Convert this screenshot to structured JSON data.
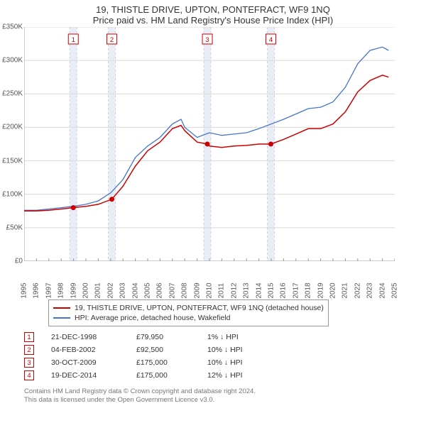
{
  "title_line1": "19, THISTLE DRIVE, UPTON, PONTEFRACT, WF9 1NQ",
  "title_line2": "Price paid vs. HM Land Registry's House Price Index (HPI)",
  "chart": {
    "type": "line",
    "background_color": "#ffffff",
    "grid_color": "#d9d9d9",
    "marker_band_color": "#e9edf7",
    "marker_dash_color": "#d0d0d0",
    "marker_badge_border": "#cc0000",
    "marker_badge_text": "#cc0000",
    "dot_color": "#cc0000",
    "xlim": [
      1995,
      2025
    ],
    "ylim": [
      0,
      350000
    ],
    "ytick_step": 50000,
    "yticks": [
      "£0",
      "£50K",
      "£100K",
      "£150K",
      "£200K",
      "£250K",
      "£300K",
      "£350K"
    ],
    "xticks": [
      1995,
      1996,
      1997,
      1998,
      1999,
      2000,
      2001,
      2002,
      2003,
      2004,
      2005,
      2006,
      2007,
      2008,
      2009,
      2010,
      2011,
      2012,
      2013,
      2014,
      2015,
      2016,
      2017,
      2018,
      2019,
      2020,
      2021,
      2022,
      2023,
      2024,
      2025
    ],
    "series": [
      {
        "name": "price_paid",
        "label": "19, THISTLE DRIVE, UPTON, PONTEFRACT, WF9 1NQ (detached house)",
        "color": "#cc0000",
        "line_width": 1.5,
        "points": [
          [
            1995,
            75000
          ],
          [
            1996,
            75000
          ],
          [
            1997,
            76000
          ],
          [
            1998,
            78000
          ],
          [
            1998.98,
            79950
          ],
          [
            1999.5,
            81000
          ],
          [
            2000,
            82000
          ],
          [
            2001,
            85000
          ],
          [
            2002.1,
            92500
          ],
          [
            2003,
            112000
          ],
          [
            2004,
            142000
          ],
          [
            2005,
            165000
          ],
          [
            2006,
            178000
          ],
          [
            2007,
            198000
          ],
          [
            2007.7,
            203000
          ],
          [
            2008,
            195000
          ],
          [
            2009,
            178000
          ],
          [
            2009.83,
            175000
          ],
          [
            2010,
            172000
          ],
          [
            2011,
            170000
          ],
          [
            2012,
            172000
          ],
          [
            2013,
            173000
          ],
          [
            2014,
            175000
          ],
          [
            2014.97,
            175000
          ],
          [
            2016,
            182000
          ],
          [
            2017,
            190000
          ],
          [
            2018,
            198000
          ],
          [
            2019,
            198000
          ],
          [
            2020,
            205000
          ],
          [
            2021,
            223000
          ],
          [
            2022,
            253000
          ],
          [
            2023,
            270000
          ],
          [
            2024,
            278000
          ],
          [
            2024.5,
            275000
          ]
        ]
      },
      {
        "name": "hpi",
        "label": "HPI: Average price, detached house, Wakefield",
        "color": "#4676c9",
        "line_width": 1.3,
        "points": [
          [
            1995,
            76000
          ],
          [
            1996,
            76000
          ],
          [
            1997,
            78000
          ],
          [
            1998,
            80000
          ],
          [
            1999,
            82000
          ],
          [
            2000,
            85000
          ],
          [
            2001,
            90000
          ],
          [
            2002,
            102000
          ],
          [
            2003,
            122000
          ],
          [
            2004,
            155000
          ],
          [
            2005,
            172000
          ],
          [
            2006,
            185000
          ],
          [
            2007,
            205000
          ],
          [
            2007.7,
            212000
          ],
          [
            2008,
            200000
          ],
          [
            2009,
            185000
          ],
          [
            2010,
            192000
          ],
          [
            2011,
            188000
          ],
          [
            2012,
            190000
          ],
          [
            2013,
            192000
          ],
          [
            2014,
            198000
          ],
          [
            2015,
            205000
          ],
          [
            2016,
            212000
          ],
          [
            2017,
            220000
          ],
          [
            2018,
            228000
          ],
          [
            2019,
            230000
          ],
          [
            2020,
            238000
          ],
          [
            2021,
            260000
          ],
          [
            2022,
            295000
          ],
          [
            2023,
            315000
          ],
          [
            2024,
            320000
          ],
          [
            2024.5,
            315000
          ]
        ]
      }
    ],
    "sale_markers": [
      {
        "n": "1",
        "x": 1998.98,
        "y": 79950
      },
      {
        "n": "2",
        "x": 2002.1,
        "y": 92500
      },
      {
        "n": "3",
        "x": 2009.83,
        "y": 175000
      },
      {
        "n": "4",
        "x": 2014.97,
        "y": 175000
      }
    ]
  },
  "legend": {
    "fontsize": 10.5
  },
  "sales_table": {
    "rows": [
      {
        "n": "1",
        "date": "21-DEC-1998",
        "price": "£79,950",
        "delta": "1% ↓ HPI"
      },
      {
        "n": "2",
        "date": "04-FEB-2002",
        "price": "£92,500",
        "delta": "10% ↓ HPI"
      },
      {
        "n": "3",
        "date": "30-OCT-2009",
        "price": "£175,000",
        "delta": "10% ↓ HPI"
      },
      {
        "n": "4",
        "date": "19-DEC-2014",
        "price": "£175,000",
        "delta": "12% ↓ HPI"
      }
    ]
  },
  "footer_line1": "Contains HM Land Registry data © Crown copyright and database right 2024.",
  "footer_line2": "This data is licensed under the Open Government Licence v3.0."
}
